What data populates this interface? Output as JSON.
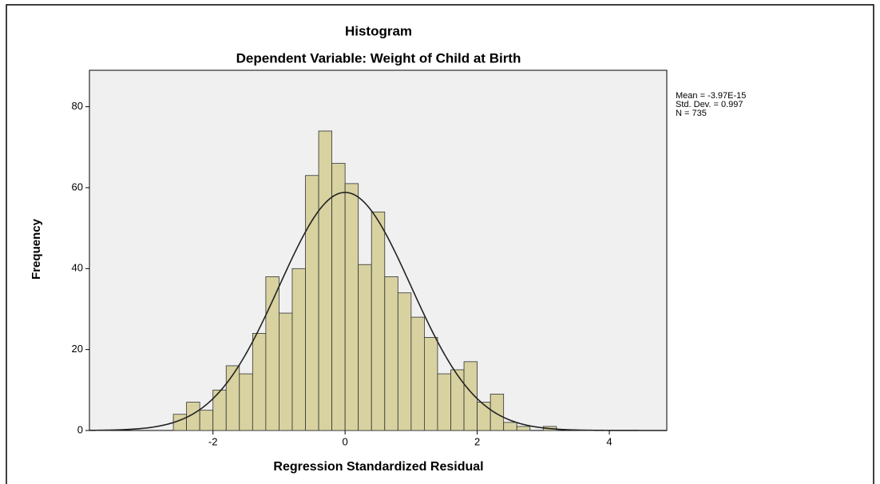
{
  "chart_data": {
    "type": "histogram",
    "title": "Histogram",
    "subtitle": "Dependent Variable: Weight of Child at Birth",
    "x_label": "Regression Standardized Residual",
    "y_label": "Frequency",
    "bins": [
      -2.6,
      -2.4,
      -2.2,
      -2.0,
      -1.8,
      -1.6,
      -1.4,
      -1.2,
      -1.0,
      -0.8,
      -0.6,
      -0.4,
      -0.2,
      0.0,
      0.2,
      0.4,
      0.6,
      0.8,
      1.0,
      1.2,
      1.4,
      1.6,
      1.8,
      2.0,
      2.2,
      2.4,
      2.6,
      2.8,
      3.0,
      3.2
    ],
    "values": [
      4,
      7,
      5,
      10,
      16,
      14,
      24,
      38,
      29,
      40,
      63,
      74,
      66,
      61,
      41,
      54,
      38,
      34,
      28,
      23,
      14,
      15,
      17,
      7,
      9,
      2,
      1,
      0,
      1
    ],
    "color": "#d7d2a0",
    "edge_color": "#333333",
    "background": "#f0f0f0",
    "curve_color": "#222222",
    "stats": {
      "mean": {
        "value": -3.97e-15,
        "label": "Mean = -3.97E-15"
      },
      "std_dev": {
        "value": 0.997,
        "label": "Std. Dev. = 0.997"
      },
      "n": {
        "value": 735,
        "label": "N = 735"
      }
    },
    "xlim": [
      -3.87,
      4.87
    ],
    "ylim": [
      0,
      89
    ],
    "xticks": [
      -2,
      0,
      2,
      4
    ],
    "yticks": [
      0,
      20,
      40,
      60,
      80
    ]
  }
}
